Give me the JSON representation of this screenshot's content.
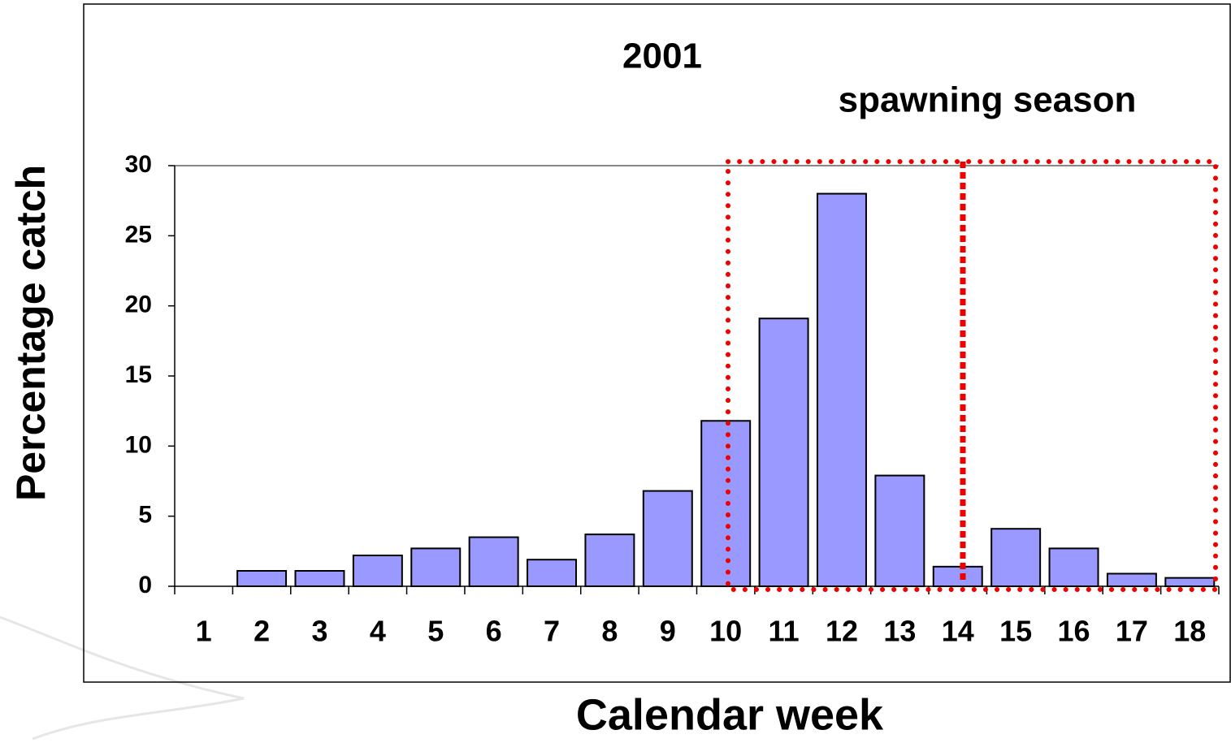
{
  "chart_data": {
    "type": "bar",
    "title": "2001",
    "annotation": "spawning season",
    "y_label": "Percentage catch",
    "x_label": "Calendar week",
    "categories": [
      "1",
      "2",
      "3",
      "4",
      "5",
      "6",
      "7",
      "8",
      "9",
      "10",
      "11",
      "12",
      "13",
      "14",
      "15",
      "16",
      "17",
      "18"
    ],
    "values": [
      0,
      1.1,
      1.1,
      2.2,
      2.7,
      3.5,
      1.9,
      3.7,
      6.8,
      11.8,
      19.1,
      28.0,
      7.9,
      1.4,
      4.1,
      2.7,
      0.9,
      0.6
    ],
    "color": "#9999ff",
    "ylim": [
      0,
      30
    ],
    "yticks": [
      0,
      5,
      10,
      15,
      20,
      25,
      30
    ]
  }
}
